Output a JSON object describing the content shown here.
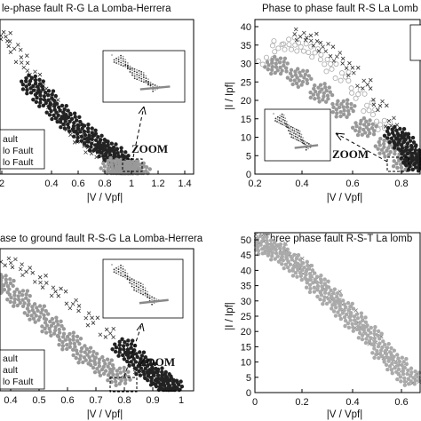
{
  "chart_data": [
    {
      "type": "scatter",
      "title": "le-phase fault R-G La Lomba-Herrera",
      "xlabel": "|V / Vpf|",
      "ylabel": "",
      "xticks": [
        "2",
        "0.4",
        "0.6",
        "0.8",
        "1",
        "1.2",
        "1.4"
      ],
      "yticks": [],
      "xlim": [
        0.2,
        1.4
      ],
      "legend": [
        "ault",
        "lo Fault",
        "lo Fault"
      ],
      "legend_position": "bottom-left",
      "annotation": "ZOOM",
      "series": [
        {
          "marker": "x",
          "color": "#333333",
          "x": [
            0.22,
            0.28,
            0.34,
            0.4,
            0.46,
            0.52,
            0.58,
            0.64,
            0.7,
            0.76,
            0.82,
            0.88,
            0.94
          ],
          "y": [
            40,
            37,
            33,
            29,
            25,
            21,
            17,
            13,
            10,
            8,
            6,
            4,
            2
          ]
        },
        {
          "marker": "dot",
          "color": "#222222",
          "x": [
            0.4,
            0.48,
            0.56,
            0.64,
            0.72,
            0.8,
            0.86,
            0.92,
            0.96,
            1.0
          ],
          "y": [
            26,
            22,
            18,
            15,
            12,
            9,
            7,
            5,
            3,
            1
          ]
        },
        {
          "marker": "dot",
          "color": "#999999",
          "x": [
            0.9,
            0.94,
            0.98,
            1.02,
            1.06
          ],
          "y": [
            2,
            1.5,
            1,
            1.5,
            1
          ]
        }
      ]
    },
    {
      "type": "scatter",
      "title": "Phase to phase fault R-S La Lomb",
      "xlabel": "|V / Vpf|",
      "ylabel": "|I / Ipf|",
      "xticks": [
        "0.2",
        "0.4",
        "0.6",
        "0.8"
      ],
      "yticks": [
        "0",
        "5",
        "10",
        "15",
        "20",
        "25",
        "30",
        "35",
        "40"
      ],
      "xlim": [
        0.2,
        0.95
      ],
      "ylim": [
        0,
        40
      ],
      "annotation": "ZOOM",
      "series": [
        {
          "marker": "o",
          "color": "#aaaaaa",
          "x": [
            0.25,
            0.3,
            0.36,
            0.42,
            0.48,
            0.54,
            0.6,
            0.66,
            0.72,
            0.78,
            0.84,
            0.9
          ],
          "y": [
            29,
            33,
            34,
            33,
            31,
            28,
            25,
            21,
            17,
            13,
            9,
            5
          ]
        },
        {
          "marker": "x",
          "color": "#333333",
          "x": [
            0.4,
            0.46,
            0.52,
            0.58,
            0.64,
            0.7,
            0.76,
            0.82,
            0.88
          ],
          "y": [
            36,
            35,
            33,
            30,
            27,
            23,
            18,
            13,
            7
          ]
        },
        {
          "marker": "dot",
          "color": "#999999",
          "x": [
            0.3,
            0.4,
            0.5,
            0.6,
            0.7,
            0.8,
            0.88
          ],
          "y": [
            28,
            25,
            21,
            17,
            12,
            7,
            3
          ]
        },
        {
          "marker": "dot",
          "color": "#222222",
          "x": [
            0.84,
            0.88,
            0.91,
            0.93
          ],
          "y": [
            10,
            8,
            5,
            3
          ]
        }
      ]
    },
    {
      "type": "scatter",
      "title": "ase to ground fault R-S-G La Lomba-Herrera",
      "xlabel": "|V / Vpf|",
      "ylabel": "",
      "xticks": [
        "0.4",
        "0.5",
        "0.6",
        "0.7",
        "0.8",
        "0.9",
        "1"
      ],
      "yticks": [],
      "xlim": [
        0.35,
        1.05
      ],
      "legend": [
        "ault",
        "ault",
        "lo Fault"
      ],
      "legend_position": "bottom-left",
      "annotation": "ZOOM",
      "series": [
        {
          "marker": "x",
          "color": "#333333",
          "x": [
            0.38,
            0.44,
            0.5,
            0.56,
            0.62,
            0.68,
            0.74,
            0.8,
            0.86
          ],
          "y": [
            36,
            34,
            31,
            28,
            24,
            20,
            16,
            11,
            6
          ]
        },
        {
          "marker": "dot",
          "color": "#999999",
          "x": [
            0.36,
            0.42,
            0.48,
            0.54,
            0.6,
            0.66,
            0.72,
            0.78
          ],
          "y": [
            30,
            26,
            22,
            18,
            14,
            10,
            7,
            4
          ]
        },
        {
          "marker": "dot",
          "color": "#222222",
          "x": [
            0.8,
            0.84,
            0.88,
            0.92,
            0.95,
            0.97
          ],
          "y": [
            12,
            9,
            6,
            4,
            2,
            1
          ]
        }
      ]
    },
    {
      "type": "scatter",
      "title": "Three phase fault R-S-T La lomb",
      "xlabel": "|V / Vpf|",
      "ylabel": "|I / Ipf|",
      "xticks": [
        "0",
        "0.2",
        "0.4",
        "0.6"
      ],
      "yticks": [
        "0",
        "5",
        "10",
        "15",
        "20",
        "25",
        "30",
        "35",
        "40",
        "45",
        "50"
      ],
      "xlim": [
        0,
        0.75
      ],
      "ylim": [
        0,
        50
      ],
      "series": [
        {
          "marker": "x",
          "color": "#777777",
          "x": [
            0.0,
            0.06,
            0.12,
            0.18,
            0.24,
            0.3,
            0.36,
            0.42,
            0.48,
            0.54,
            0.6,
            0.66,
            0.72
          ],
          "y": [
            48,
            47,
            45,
            42,
            38,
            34,
            30,
            26,
            21,
            17,
            12,
            8,
            4
          ]
        },
        {
          "marker": "dot",
          "color": "#aaaaaa",
          "x": [
            0.04,
            0.1,
            0.16,
            0.22,
            0.28,
            0.34,
            0.4,
            0.46,
            0.52,
            0.58,
            0.64,
            0.7
          ],
          "y": [
            46,
            44,
            41,
            38,
            34,
            30,
            26,
            22,
            18,
            13,
            9,
            5
          ]
        }
      ]
    }
  ]
}
